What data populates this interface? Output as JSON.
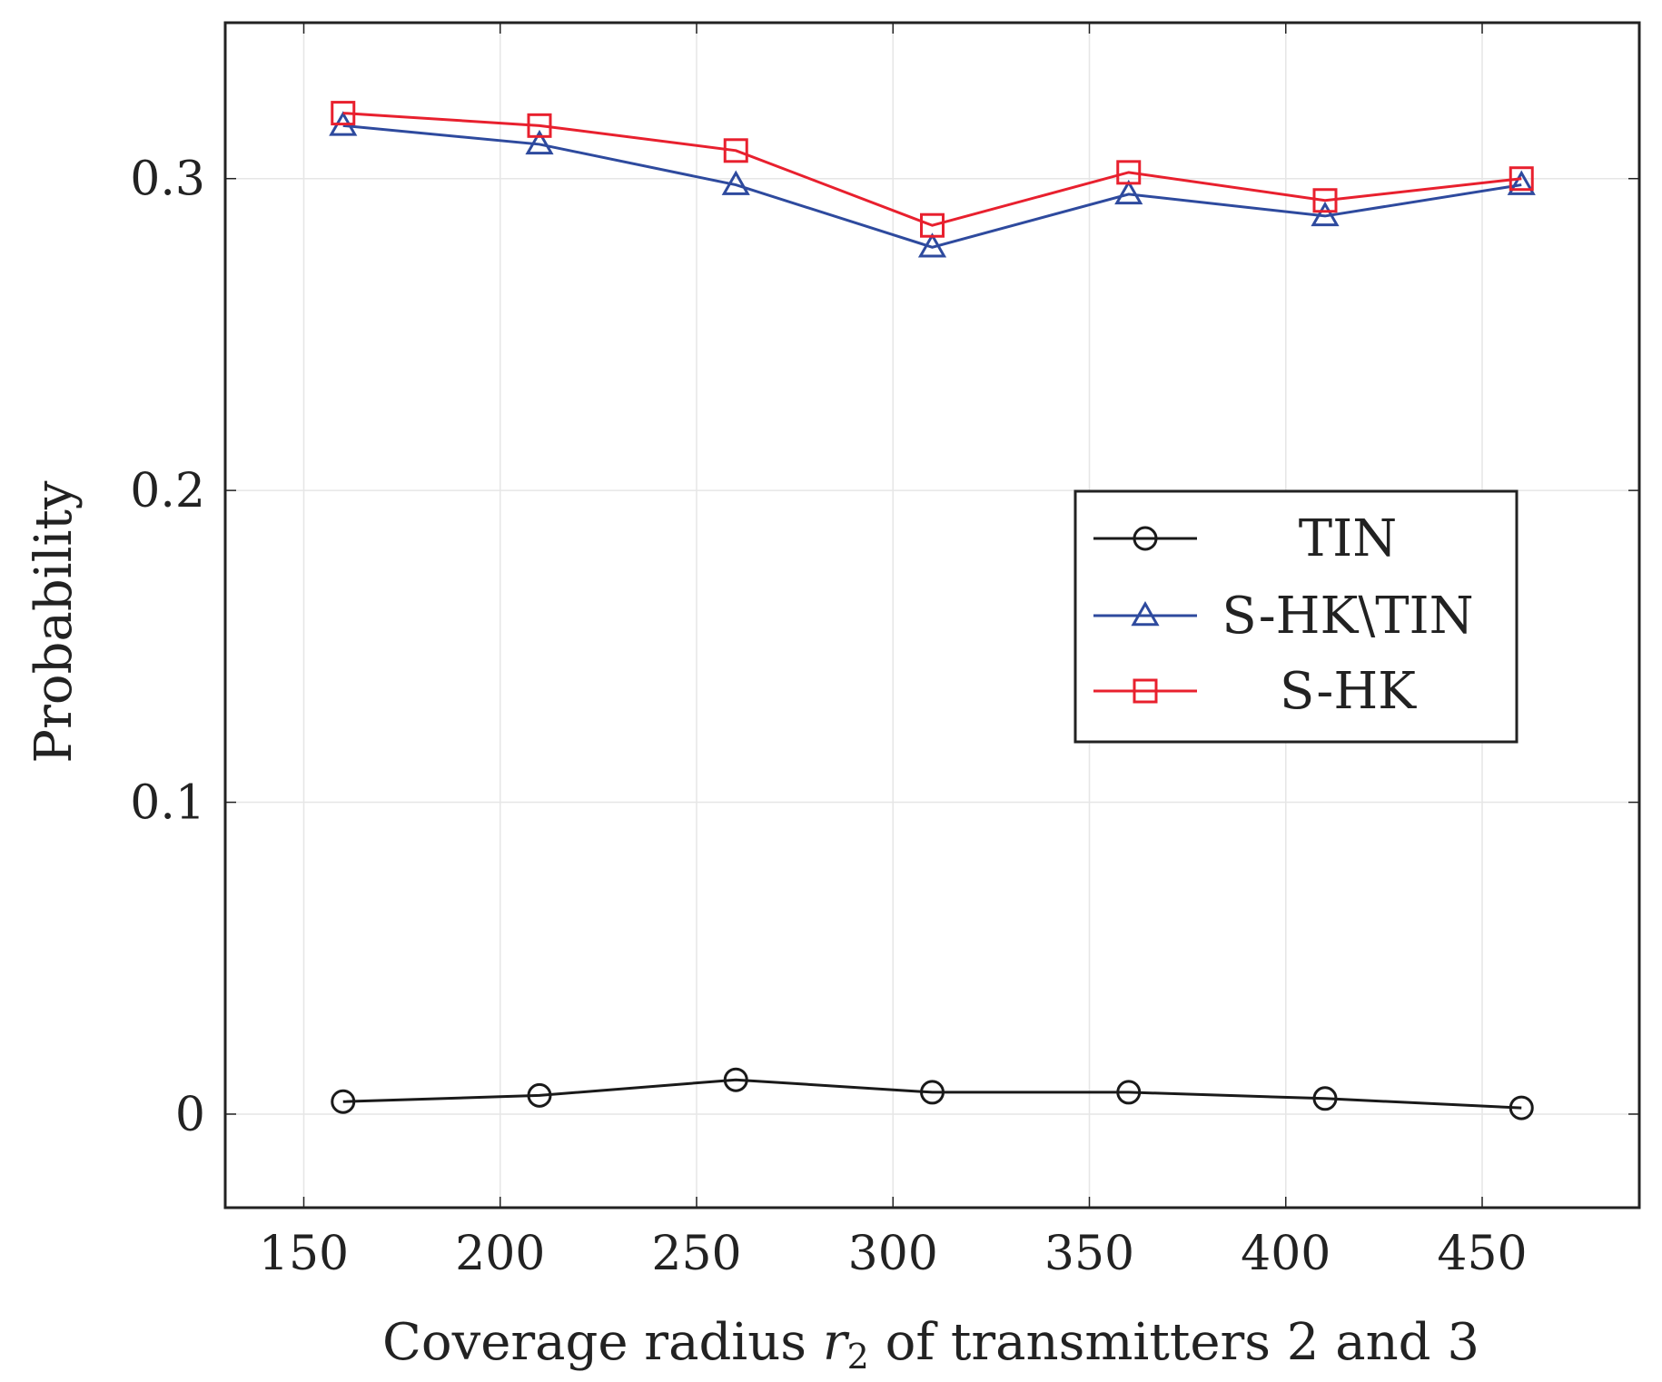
{
  "chart_data": {
    "type": "line",
    "title": "",
    "xlabel": "Coverage radius",
    "xlabel_symbol": "r",
    "xlabel_subscript": "2",
    "xlabel_suffix": "of transmitters 2 and 3",
    "ylabel": "Probability",
    "xlim": [
      130,
      490
    ],
    "ylim": [
      -0.03,
      0.35
    ],
    "xticks": [
      150,
      200,
      250,
      300,
      350,
      400,
      450
    ],
    "xtick_labels": [
      "150",
      "200",
      "250",
      "300",
      "350",
      "400",
      "450"
    ],
    "yticks": [
      0,
      0.1,
      0.2,
      0.3
    ],
    "ytick_labels": [
      "0",
      "0.1",
      "0.2",
      "0.3"
    ],
    "grid": true,
    "legend_position": "center-right",
    "x": [
      160,
      210,
      260,
      310,
      360,
      410,
      460
    ],
    "series": [
      {
        "name": "TIN",
        "color": "#1a1a1a",
        "marker": "circle",
        "values": [
          0.004,
          0.006,
          0.011,
          0.007,
          0.007,
          0.005,
          0.002
        ]
      },
      {
        "name": "S-HK\\TIN",
        "color": "#2e4a9e",
        "marker": "triangle",
        "values": [
          0.317,
          0.311,
          0.298,
          0.278,
          0.295,
          0.288,
          0.298
        ]
      },
      {
        "name": "S-HK",
        "color": "#e8202e",
        "marker": "square",
        "values": [
          0.321,
          0.317,
          0.309,
          0.285,
          0.302,
          0.293,
          0.3
        ]
      }
    ]
  }
}
